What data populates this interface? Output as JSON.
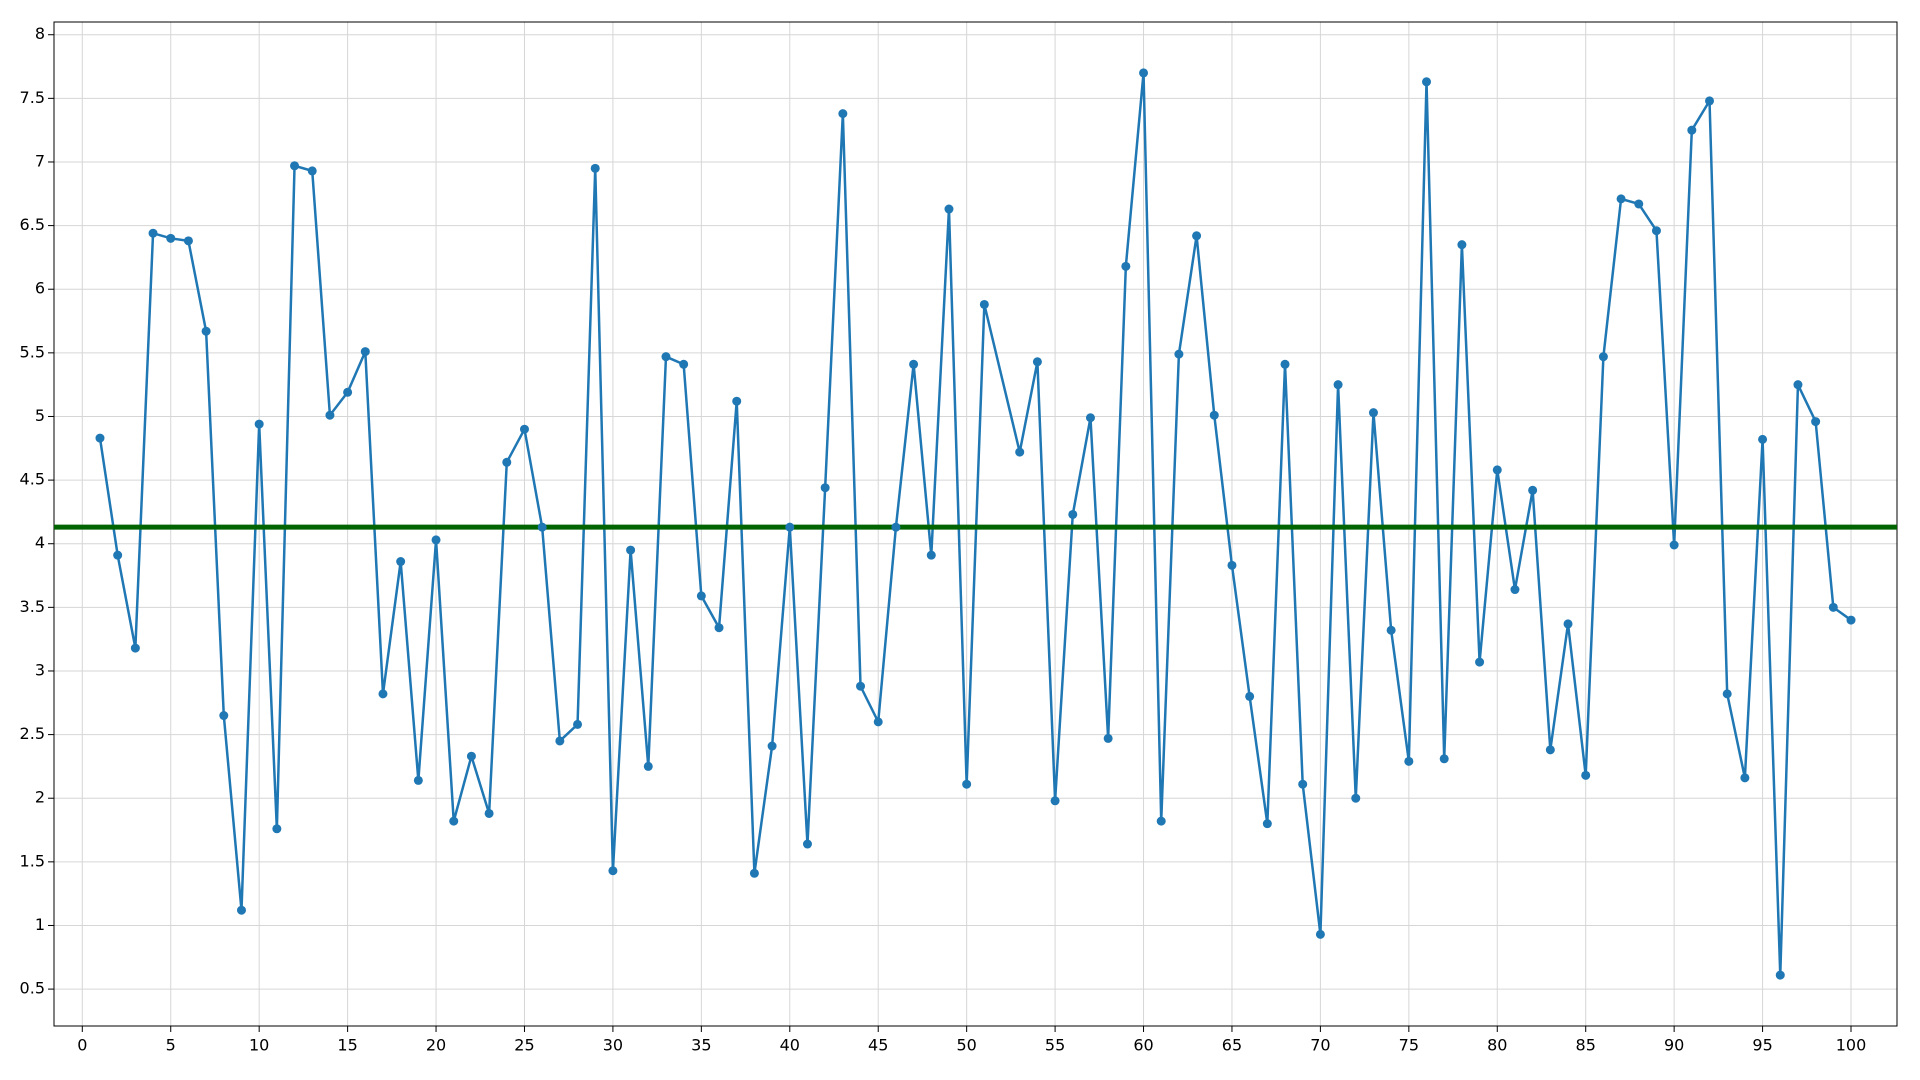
{
  "chart_data": {
    "type": "line",
    "x": [
      1,
      2,
      3,
      4,
      5,
      6,
      7,
      8,
      9,
      10,
      11,
      12,
      13,
      14,
      15,
      16,
      17,
      18,
      19,
      20,
      21,
      22,
      23,
      24,
      25,
      26,
      27,
      28,
      29,
      30,
      31,
      32,
      33,
      34,
      35,
      36,
      37,
      38,
      39,
      40,
      41,
      42,
      43,
      44,
      45,
      46,
      47,
      48,
      49,
      50,
      51,
      53,
      54,
      55,
      56,
      57,
      58,
      59,
      60,
      61,
      62,
      63,
      64,
      65,
      66,
      67,
      68,
      69,
      70,
      71,
      72,
      73,
      74,
      75,
      76,
      77,
      78,
      79,
      80,
      81,
      82,
      83,
      84,
      85,
      86,
      87,
      88,
      89,
      90,
      91,
      92,
      93,
      94,
      95,
      96,
      97,
      98,
      99,
      100
    ],
    "series": [
      {
        "color": "#1f77b4",
        "values": [
          4.83,
          3.91,
          3.18,
          6.44,
          6.4,
          6.38,
          5.67,
          2.65,
          1.12,
          4.94,
          1.76,
          6.97,
          6.93,
          5.01,
          5.19,
          5.51,
          2.82,
          3.86,
          2.14,
          4.03,
          1.82,
          2.33,
          1.88,
          4.64,
          4.9,
          4.13,
          2.45,
          2.58,
          6.95,
          1.43,
          3.95,
          2.25,
          5.47,
          5.41,
          3.59,
          3.34,
          5.12,
          1.41,
          2.41,
          4.13,
          1.64,
          4.44,
          7.38,
          2.88,
          2.6,
          4.13,
          5.41,
          3.91,
          6.63,
          2.11,
          5.88,
          4.72,
          5.43,
          1.98,
          4.23,
          4.99,
          2.47,
          6.18,
          7.7,
          1.82,
          5.49,
          6.42,
          5.01,
          3.83,
          2.8,
          1.8,
          5.41,
          2.11,
          0.93,
          5.25,
          2.0,
          5.03,
          3.32,
          2.29,
          7.63,
          2.31,
          6.35,
          3.07,
          4.58,
          3.64,
          4.42,
          2.38,
          3.37,
          2.18,
          5.47,
          6.71,
          6.67,
          6.46,
          3.99,
          7.25,
          7.48,
          2.82,
          2.16,
          4.82,
          0.61,
          5.25,
          4.96,
          3.5,
          3.4
        ]
      }
    ],
    "hline": {
      "value": 4.13,
      "color": "#006400"
    },
    "xlim": [
      -1.6,
      102.6
    ],
    "ylim": [
      0.21,
      8.1
    ],
    "xticks": [
      0,
      5,
      10,
      15,
      20,
      25,
      30,
      35,
      40,
      45,
      50,
      55,
      60,
      65,
      70,
      75,
      80,
      85,
      90,
      95,
      100
    ],
    "yticks": [
      0.5,
      1,
      1.5,
      2,
      2.5,
      3,
      3.5,
      4,
      4.5,
      5,
      5.5,
      6,
      6.5,
      7,
      7.5,
      8
    ],
    "grid": true
  }
}
